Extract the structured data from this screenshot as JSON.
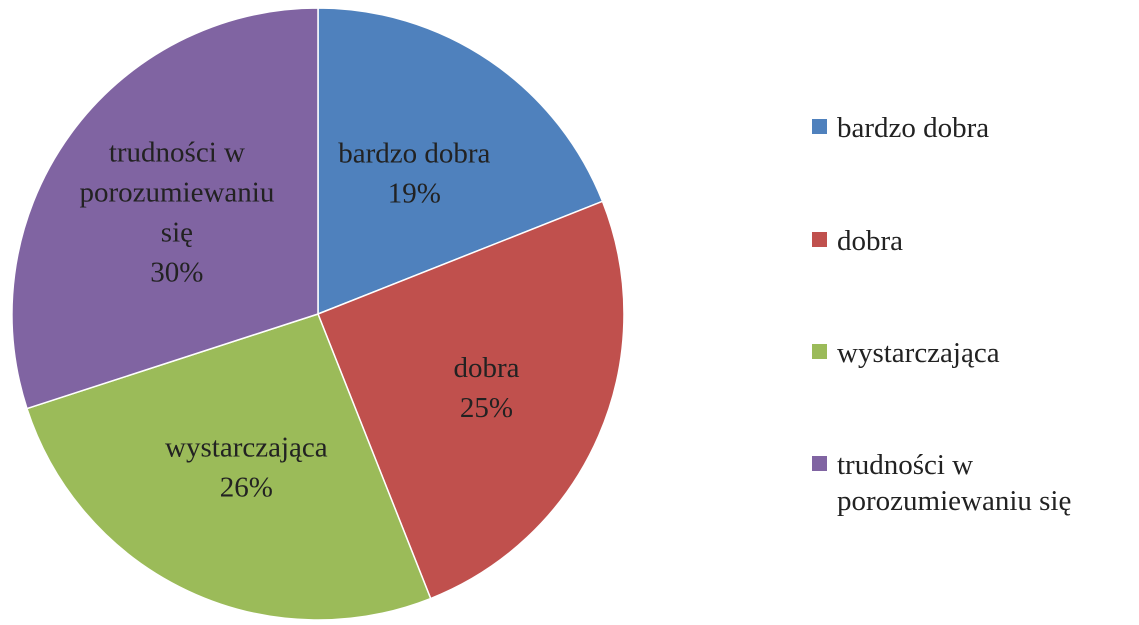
{
  "chart_data": {
    "type": "pie",
    "title": "",
    "slices": [
      {
        "label": "bardzo dobra",
        "data_label_lines": [
          "bardzo dobra",
          "19%"
        ],
        "value": 19,
        "color": "#4F81BD"
      },
      {
        "label": "dobra",
        "data_label_lines": [
          "dobra",
          "25%"
        ],
        "value": 25,
        "color": "#C0504D"
      },
      {
        "label": "wystarczająca",
        "data_label_lines": [
          "wystarczająca",
          "26%"
        ],
        "value": 26,
        "color": "#9BBB59"
      },
      {
        "label": "trudności w porozumiewaniu się",
        "data_label_lines": [
          "trudności w",
          "porozumiewaniu",
          "się",
          "30%"
        ],
        "value": 30,
        "color": "#8064A2"
      }
    ],
    "legend_position": "right",
    "legend": [
      {
        "lines": [
          "bardzo dobra"
        ],
        "color": "#4F81BD"
      },
      {
        "lines": [
          "dobra"
        ],
        "color": "#C0504D"
      },
      {
        "lines": [
          "wystarczająca"
        ],
        "color": "#9BBB59"
      },
      {
        "lines": [
          "trudności w",
          "porozumiewaniu się"
        ],
        "color": "#8064A2"
      }
    ]
  }
}
